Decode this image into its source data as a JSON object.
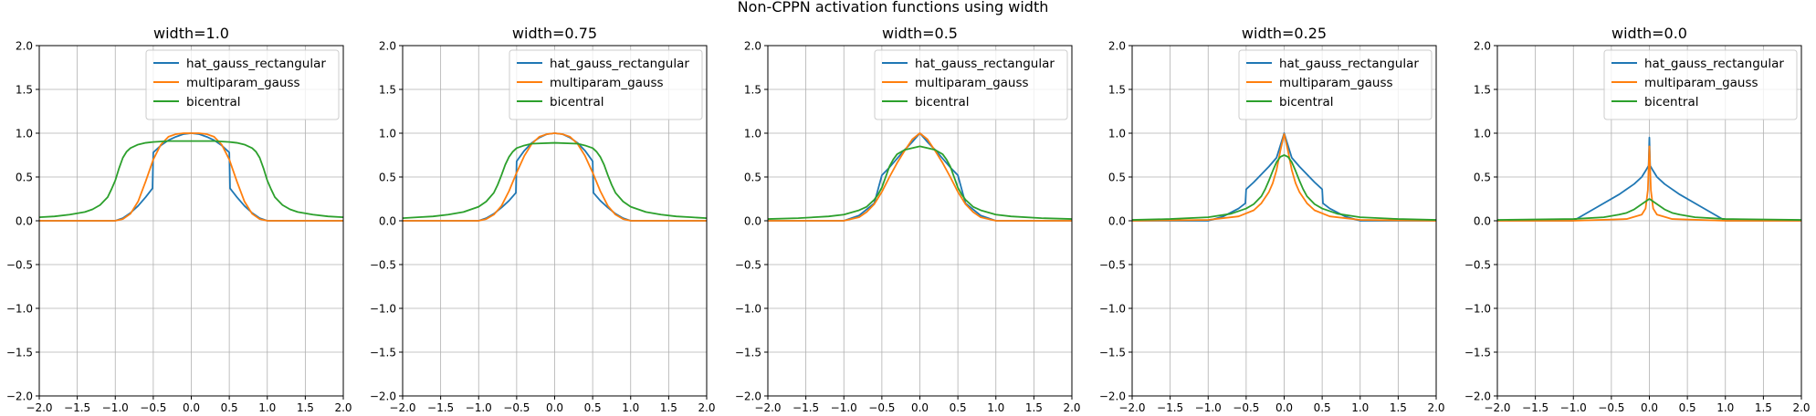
{
  "chart_data": {
    "type": "line",
    "title": "Non-CPPN activation functions using width",
    "panels": [
      {
        "title": "width=1.0",
        "series": [
          {
            "name": "hat_gauss_rectangular",
            "x": [
              -2.0,
              -1.0,
              -0.9,
              -0.8,
              -0.7,
              -0.6,
              -0.51,
              -0.5,
              -0.4,
              -0.3,
              -0.2,
              -0.1,
              0.0,
              0.1,
              0.2,
              0.3,
              0.4,
              0.5,
              0.51,
              0.6,
              0.7,
              0.8,
              0.9,
              1.0,
              2.0
            ],
            "y": [
              0.0,
              0.0,
              0.03,
              0.09,
              0.17,
              0.27,
              0.37,
              0.78,
              0.86,
              0.92,
              0.96,
              0.99,
              1.0,
              0.99,
              0.96,
              0.92,
              0.86,
              0.78,
              0.37,
              0.27,
              0.17,
              0.09,
              0.03,
              0.0,
              0.0
            ]
          },
          {
            "name": "multiparam_gauss",
            "x": [
              -2.0,
              -1.0,
              -0.9,
              -0.8,
              -0.7,
              -0.6,
              -0.5,
              -0.4,
              -0.3,
              -0.2,
              -0.1,
              0.0,
              0.1,
              0.2,
              0.3,
              0.4,
              0.5,
              0.6,
              0.7,
              0.8,
              0.9,
              1.0,
              2.0
            ],
            "y": [
              0.0,
              0.0,
              0.02,
              0.08,
              0.22,
              0.45,
              0.7,
              0.87,
              0.96,
              0.99,
              1.0,
              1.0,
              1.0,
              0.99,
              0.96,
              0.87,
              0.7,
              0.45,
              0.22,
              0.08,
              0.02,
              0.0,
              0.0
            ]
          },
          {
            "name": "bicentral",
            "x": [
              -2.0,
              -1.8,
              -1.6,
              -1.4,
              -1.3,
              -1.2,
              -1.1,
              -1.05,
              -1.0,
              -0.95,
              -0.9,
              -0.85,
              -0.8,
              -0.7,
              -0.6,
              -0.5,
              -0.3,
              0.0,
              0.3,
              0.5,
              0.6,
              0.7,
              0.8,
              0.85,
              0.9,
              0.95,
              1.0,
              1.05,
              1.1,
              1.2,
              1.3,
              1.4,
              1.6,
              1.8,
              2.0
            ],
            "y": [
              0.04,
              0.05,
              0.07,
              0.1,
              0.13,
              0.18,
              0.27,
              0.36,
              0.46,
              0.6,
              0.72,
              0.79,
              0.83,
              0.87,
              0.89,
              0.9,
              0.91,
              0.91,
              0.91,
              0.9,
              0.89,
              0.87,
              0.83,
              0.79,
              0.72,
              0.6,
              0.46,
              0.36,
              0.27,
              0.18,
              0.13,
              0.1,
              0.07,
              0.05,
              0.04
            ]
          }
        ]
      },
      {
        "title": "width=0.75",
        "series": [
          {
            "name": "hat_gauss_rectangular",
            "x": [
              -2.0,
              -1.0,
              -0.9,
              -0.8,
              -0.7,
              -0.6,
              -0.51,
              -0.5,
              -0.4,
              -0.3,
              -0.2,
              -0.1,
              0.0,
              0.1,
              0.2,
              0.3,
              0.4,
              0.5,
              0.51,
              0.6,
              0.7,
              0.8,
              0.9,
              1.0,
              2.0
            ],
            "y": [
              0.0,
              0.0,
              0.03,
              0.08,
              0.15,
              0.23,
              0.32,
              0.68,
              0.8,
              0.89,
              0.95,
              0.99,
              1.0,
              0.99,
              0.95,
              0.89,
              0.8,
              0.68,
              0.32,
              0.23,
              0.15,
              0.08,
              0.03,
              0.0,
              0.0
            ]
          },
          {
            "name": "multiparam_gauss",
            "x": [
              -2.0,
              -1.0,
              -0.9,
              -0.8,
              -0.7,
              -0.6,
              -0.5,
              -0.4,
              -0.3,
              -0.2,
              -0.1,
              0.0,
              0.1,
              0.2,
              0.3,
              0.4,
              0.5,
              0.6,
              0.7,
              0.8,
              0.9,
              1.0,
              2.0
            ],
            "y": [
              0.0,
              0.0,
              0.02,
              0.07,
              0.17,
              0.34,
              0.55,
              0.74,
              0.88,
              0.96,
              0.99,
              1.0,
              0.99,
              0.96,
              0.88,
              0.74,
              0.55,
              0.34,
              0.17,
              0.07,
              0.02,
              0.0,
              0.0
            ]
          },
          {
            "name": "bicentral",
            "x": [
              -2.0,
              -1.8,
              -1.6,
              -1.4,
              -1.2,
              -1.0,
              -0.9,
              -0.8,
              -0.75,
              -0.7,
              -0.65,
              -0.6,
              -0.55,
              -0.5,
              -0.4,
              -0.3,
              0.0,
              0.3,
              0.4,
              0.5,
              0.55,
              0.6,
              0.65,
              0.7,
              0.75,
              0.8,
              0.9,
              1.0,
              1.2,
              1.4,
              1.6,
              1.8,
              2.0
            ],
            "y": [
              0.03,
              0.04,
              0.05,
              0.07,
              0.1,
              0.16,
              0.22,
              0.32,
              0.41,
              0.52,
              0.64,
              0.73,
              0.79,
              0.83,
              0.86,
              0.88,
              0.89,
              0.88,
              0.86,
              0.83,
              0.79,
              0.73,
              0.64,
              0.52,
              0.41,
              0.32,
              0.22,
              0.16,
              0.1,
              0.07,
              0.05,
              0.04,
              0.03
            ]
          }
        ]
      },
      {
        "title": "width=0.5",
        "series": [
          {
            "name": "hat_gauss_rectangular",
            "x": [
              -2.0,
              -1.0,
              -0.8,
              -0.6,
              -0.5,
              -0.4,
              -0.3,
              -0.2,
              -0.1,
              0.0,
              0.1,
              0.2,
              0.3,
              0.4,
              0.5,
              0.6,
              0.8,
              1.0,
              2.0
            ],
            "y": [
              0.0,
              0.0,
              0.06,
              0.2,
              0.52,
              0.61,
              0.71,
              0.81,
              0.9,
              1.0,
              0.9,
              0.81,
              0.71,
              0.61,
              0.52,
              0.2,
              0.06,
              0.0,
              0.0
            ]
          },
          {
            "name": "multiparam_gauss",
            "x": [
              -2.0,
              -1.0,
              -0.8,
              -0.7,
              -0.6,
              -0.5,
              -0.4,
              -0.3,
              -0.2,
              -0.1,
              0.0,
              0.1,
              0.2,
              0.3,
              0.4,
              0.5,
              0.6,
              0.7,
              0.8,
              1.0,
              2.0
            ],
            "y": [
              0.0,
              0.0,
              0.04,
              0.1,
              0.19,
              0.33,
              0.5,
              0.66,
              0.8,
              0.93,
              1.0,
              0.93,
              0.8,
              0.66,
              0.5,
              0.33,
              0.19,
              0.1,
              0.04,
              0.0,
              0.0
            ]
          },
          {
            "name": "bicentral",
            "x": [
              -2.0,
              -1.6,
              -1.2,
              -1.0,
              -0.8,
              -0.7,
              -0.6,
              -0.55,
              -0.5,
              -0.45,
              -0.4,
              -0.35,
              -0.3,
              -0.2,
              0.0,
              0.2,
              0.3,
              0.35,
              0.4,
              0.45,
              0.5,
              0.55,
              0.6,
              0.7,
              0.8,
              1.0,
              1.2,
              1.6,
              2.0
            ],
            "y": [
              0.02,
              0.03,
              0.05,
              0.07,
              0.12,
              0.16,
              0.24,
              0.3,
              0.38,
              0.5,
              0.62,
              0.7,
              0.76,
              0.81,
              0.85,
              0.81,
              0.76,
              0.7,
              0.62,
              0.5,
              0.38,
              0.3,
              0.24,
              0.16,
              0.12,
              0.07,
              0.05,
              0.03,
              0.02
            ]
          }
        ]
      },
      {
        "title": "width=0.25",
        "series": [
          {
            "name": "hat_gauss_rectangular",
            "x": [
              -2.0,
              -1.0,
              -0.8,
              -0.6,
              -0.51,
              -0.5,
              -0.4,
              -0.3,
              -0.2,
              -0.1,
              0.0,
              0.1,
              0.2,
              0.3,
              0.4,
              0.5,
              0.51,
              0.6,
              0.8,
              1.0,
              2.0
            ],
            "y": [
              0.0,
              0.0,
              0.05,
              0.14,
              0.2,
              0.36,
              0.44,
              0.53,
              0.62,
              0.72,
              1.0,
              0.72,
              0.62,
              0.53,
              0.44,
              0.36,
              0.2,
              0.14,
              0.05,
              0.0,
              0.0
            ]
          },
          {
            "name": "multiparam_gauss",
            "x": [
              -2.0,
              -1.0,
              -0.6,
              -0.4,
              -0.3,
              -0.2,
              -0.15,
              -0.1,
              -0.05,
              0.0,
              0.05,
              0.1,
              0.15,
              0.2,
              0.3,
              0.4,
              0.6,
              1.0,
              2.0
            ],
            "y": [
              0.0,
              0.01,
              0.05,
              0.12,
              0.2,
              0.33,
              0.43,
              0.58,
              0.8,
              0.99,
              0.8,
              0.58,
              0.43,
              0.33,
              0.2,
              0.12,
              0.05,
              0.01,
              0.0
            ]
          },
          {
            "name": "bicentral",
            "x": [
              -2.0,
              -1.5,
              -1.0,
              -0.7,
              -0.5,
              -0.4,
              -0.3,
              -0.25,
              -0.2,
              -0.15,
              -0.1,
              -0.05,
              0.0,
              0.05,
              0.1,
              0.15,
              0.2,
              0.25,
              0.3,
              0.4,
              0.5,
              0.7,
              1.0,
              1.5,
              2.0
            ],
            "y": [
              0.01,
              0.02,
              0.04,
              0.08,
              0.14,
              0.19,
              0.28,
              0.36,
              0.46,
              0.57,
              0.67,
              0.73,
              0.75,
              0.73,
              0.67,
              0.57,
              0.46,
              0.36,
              0.28,
              0.19,
              0.14,
              0.08,
              0.04,
              0.02,
              0.01
            ]
          }
        ]
      },
      {
        "title": "width=0.0",
        "series": [
          {
            "name": "hat_gauss_rectangular",
            "x": [
              -2.0,
              -1.0,
              -0.7,
              -0.4,
              -0.2,
              -0.1,
              -0.05,
              -0.01,
              0.0,
              0.01,
              0.05,
              0.1,
              0.2,
              0.4,
              0.7,
              1.0,
              2.0
            ],
            "y": [
              0.0,
              0.0,
              0.15,
              0.3,
              0.42,
              0.5,
              0.57,
              0.63,
              0.95,
              0.63,
              0.57,
              0.5,
              0.42,
              0.3,
              0.15,
              0.0,
              0.0
            ]
          },
          {
            "name": "multiparam_gauss",
            "x": [
              -2.0,
              -1.0,
              -0.3,
              -0.1,
              -0.05,
              -0.02,
              0.0,
              0.02,
              0.05,
              0.1,
              0.3,
              1.0,
              2.0
            ],
            "y": [
              0.0,
              0.0,
              0.02,
              0.07,
              0.14,
              0.35,
              0.85,
              0.35,
              0.14,
              0.07,
              0.02,
              0.0,
              0.0
            ]
          },
          {
            "name": "bicentral",
            "x": [
              -2.0,
              -1.0,
              -0.6,
              -0.4,
              -0.3,
              -0.2,
              -0.1,
              -0.05,
              0.0,
              0.05,
              0.1,
              0.2,
              0.3,
              0.4,
              0.6,
              1.0,
              2.0
            ],
            "y": [
              0.01,
              0.02,
              0.04,
              0.07,
              0.09,
              0.13,
              0.19,
              0.22,
              0.25,
              0.22,
              0.19,
              0.13,
              0.09,
              0.07,
              0.04,
              0.02,
              0.01
            ]
          }
        ]
      }
    ],
    "xlim": [
      -2.0,
      2.0
    ],
    "ylim": [
      -2.0,
      2.0
    ],
    "xticks": [
      -2.0,
      -1.5,
      -1.0,
      -0.5,
      0.0,
      0.5,
      1.0,
      1.5,
      2.0
    ],
    "yticks": [
      -2.0,
      -1.5,
      -1.0,
      -0.5,
      0.0,
      0.5,
      1.0,
      1.5,
      2.0
    ],
    "grid": true,
    "legend": "top-right",
    "series_colors": {
      "hat_gauss_rectangular": "#1f77b4",
      "multiparam_gauss": "#ff7f0e",
      "bicentral": "#2ca02c"
    }
  }
}
